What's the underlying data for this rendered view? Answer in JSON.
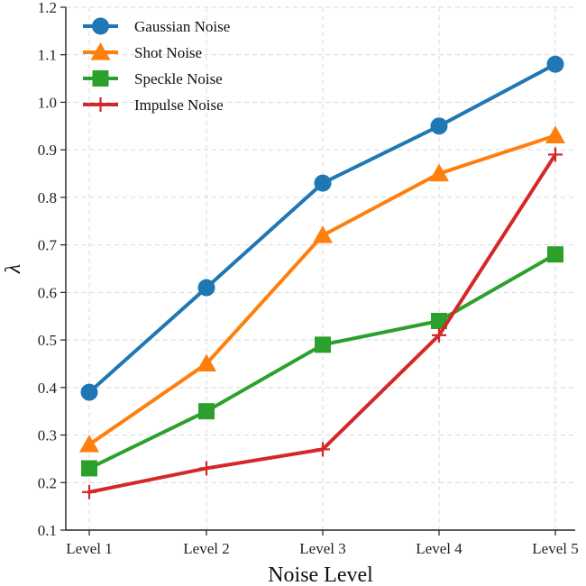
{
  "chart_data": {
    "type": "line",
    "title": "",
    "xlabel": "Noise Level",
    "ylabel": "λ",
    "categories": [
      "Level 1",
      "Level 2",
      "Level 3",
      "Level 4",
      "Level 5"
    ],
    "ylim": [
      0.1,
      1.2
    ],
    "yticks": [
      "0.1",
      "0.2",
      "0.3",
      "0.4",
      "0.5",
      "0.6",
      "0.7",
      "0.8",
      "0.9",
      "1.0",
      "1.1",
      "1.2"
    ],
    "grid": true,
    "legend_position": "top-left",
    "series": [
      {
        "name": "Gaussian Noise",
        "values": [
          0.39,
          0.61,
          0.83,
          0.95,
          1.08
        ],
        "color": "#1f77b4",
        "marker": "circle"
      },
      {
        "name": "Shot Noise",
        "values": [
          0.28,
          0.45,
          0.72,
          0.85,
          0.93
        ],
        "color": "#ff7f0e",
        "marker": "triangle"
      },
      {
        "name": "Speckle Noise",
        "values": [
          0.23,
          0.35,
          0.49,
          0.54,
          0.68
        ],
        "color": "#2ca02c",
        "marker": "square"
      },
      {
        "name": "Impulse Noise",
        "values": [
          0.18,
          0.23,
          0.27,
          0.51,
          0.89
        ],
        "color": "#d62728",
        "marker": "plus"
      }
    ]
  }
}
